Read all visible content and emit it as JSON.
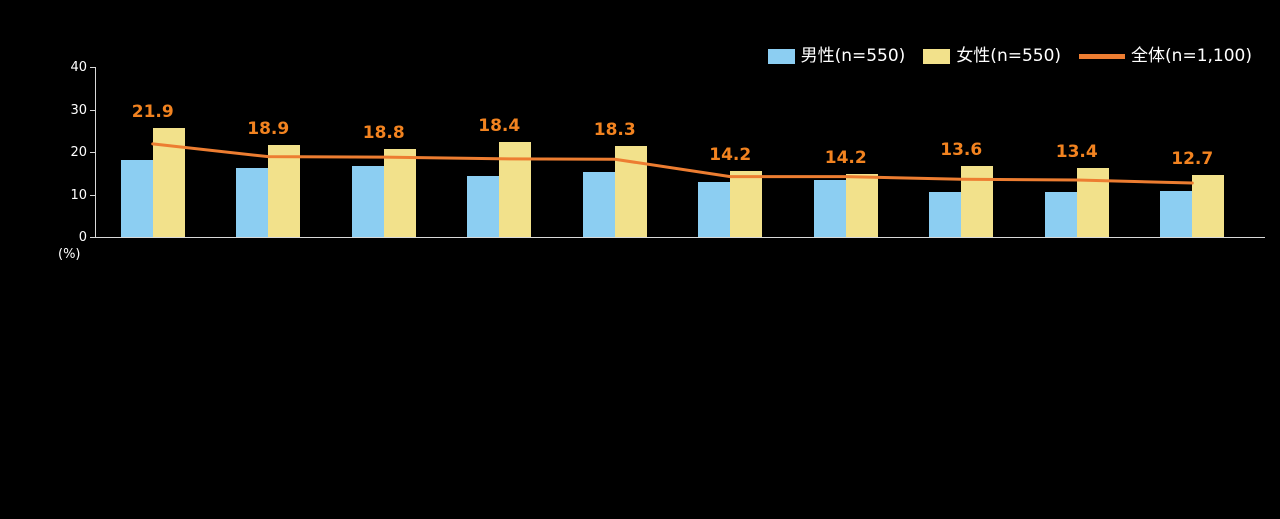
{
  "legend": [
    {
      "label": "男性(n=550)",
      "color": "#8CCEF2",
      "type": "box"
    },
    {
      "label": "女性(n=550)",
      "color": "#F2E18B",
      "type": "box"
    },
    {
      "label": "全体(n=1,100)",
      "color": "#ED7D31",
      "type": "line"
    }
  ],
  "axis": {
    "yticks": [
      "40",
      "30",
      "20",
      "10",
      "0"
    ],
    "ytick_values": [
      40,
      30,
      20,
      10,
      0
    ],
    "unit_label": "(%)"
  },
  "colors": {
    "male_bar": "#8CCEF2",
    "female_bar": "#F2E18B",
    "overall_line": "#ED7D31",
    "data_label": "#F28320",
    "axis": "#D9D9D9",
    "text": "#FFFFFF",
    "background": "#000000"
  },
  "chart_data": {
    "type": "bar",
    "ylim": [
      0,
      40
    ],
    "ylabel": "(%)",
    "legend_position": "top-right",
    "grid": false,
    "series": [
      {
        "name": "男性(n=550)",
        "kind": "bar",
        "color": "#8CCEF2",
        "values": [
          18.2,
          16.2,
          16.8,
          14.4,
          15.2,
          12.9,
          13.5,
          10.6,
          10.6,
          10.8
        ]
      },
      {
        "name": "女性(n=550)",
        "kind": "bar",
        "color": "#F2E18B",
        "values": [
          25.6,
          21.6,
          20.8,
          22.4,
          21.4,
          15.5,
          14.9,
          16.6,
          16.2,
          14.6
        ]
      },
      {
        "name": "全体(n=1,100)",
        "kind": "line",
        "color": "#ED7D31",
        "values": [
          21.9,
          18.9,
          18.8,
          18.4,
          18.3,
          14.2,
          14.2,
          13.6,
          13.4,
          12.7
        ]
      }
    ],
    "data_labels": [
      "21.9",
      "18.9",
      "18.8",
      "18.4",
      "18.3",
      "14.2",
      "14.2",
      "13.6",
      "13.4",
      "12.7"
    ]
  }
}
